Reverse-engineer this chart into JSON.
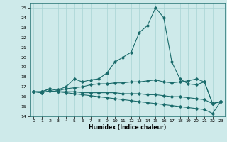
{
  "xlabel": "Humidex (Indice chaleur)",
  "xlim": [
    -0.5,
    23.5
  ],
  "ylim": [
    14,
    25.5
  ],
  "yticks": [
    14,
    15,
    16,
    17,
    18,
    19,
    20,
    21,
    22,
    23,
    24,
    25
  ],
  "xticks": [
    0,
    1,
    2,
    3,
    4,
    5,
    6,
    7,
    8,
    9,
    10,
    11,
    12,
    13,
    14,
    15,
    16,
    17,
    18,
    19,
    20,
    21,
    22,
    23
  ],
  "bg_color": "#ceeaea",
  "line_color": "#1a6b6b",
  "grid_color": "#a8d4d4",
  "series": [
    {
      "x": [
        0,
        1,
        2,
        3,
        4,
        5,
        6,
        7,
        8,
        9,
        10,
        11,
        12,
        13,
        14,
        15,
        16,
        17,
        18,
        19,
        20,
        21,
        22,
        23
      ],
      "y": [
        16.5,
        16.5,
        16.8,
        16.7,
        17.0,
        17.8,
        17.5,
        17.7,
        17.8,
        18.4,
        19.5,
        20.0,
        20.5,
        22.5,
        23.2,
        25.0,
        24.0,
        19.5,
        17.8,
        17.3,
        17.2,
        17.5,
        15.3,
        15.5
      ]
    },
    {
      "x": [
        0,
        1,
        2,
        3,
        4,
        5,
        6,
        7,
        8,
        9,
        10,
        11,
        12,
        13,
        14,
        15,
        16,
        17,
        18,
        19,
        20,
        21,
        22,
        23
      ],
      "y": [
        16.5,
        16.5,
        16.8,
        16.6,
        16.8,
        16.9,
        17.0,
        17.2,
        17.3,
        17.3,
        17.4,
        17.4,
        17.5,
        17.5,
        17.6,
        17.7,
        17.5,
        17.4,
        17.5,
        17.6,
        17.8,
        17.5,
        15.3,
        15.5
      ]
    },
    {
      "x": [
        0,
        1,
        2,
        3,
        4,
        5,
        6,
        7,
        8,
        9,
        10,
        11,
        12,
        13,
        14,
        15,
        16,
        17,
        18,
        19,
        20,
        21,
        22,
        23
      ],
      "y": [
        16.5,
        16.4,
        16.6,
        16.5,
        16.5,
        16.5,
        16.4,
        16.4,
        16.4,
        16.4,
        16.4,
        16.3,
        16.3,
        16.3,
        16.2,
        16.2,
        16.1,
        16.0,
        16.0,
        15.9,
        15.8,
        15.7,
        15.3,
        15.5
      ]
    },
    {
      "x": [
        0,
        1,
        2,
        3,
        4,
        5,
        6,
        7,
        8,
        9,
        10,
        11,
        12,
        13,
        14,
        15,
        16,
        17,
        18,
        19,
        20,
        21,
        22,
        23
      ],
      "y": [
        16.5,
        16.4,
        16.6,
        16.5,
        16.4,
        16.3,
        16.2,
        16.1,
        16.0,
        15.9,
        15.8,
        15.7,
        15.6,
        15.5,
        15.4,
        15.3,
        15.2,
        15.1,
        15.0,
        14.9,
        14.8,
        14.7,
        14.3,
        15.5
      ]
    }
  ]
}
